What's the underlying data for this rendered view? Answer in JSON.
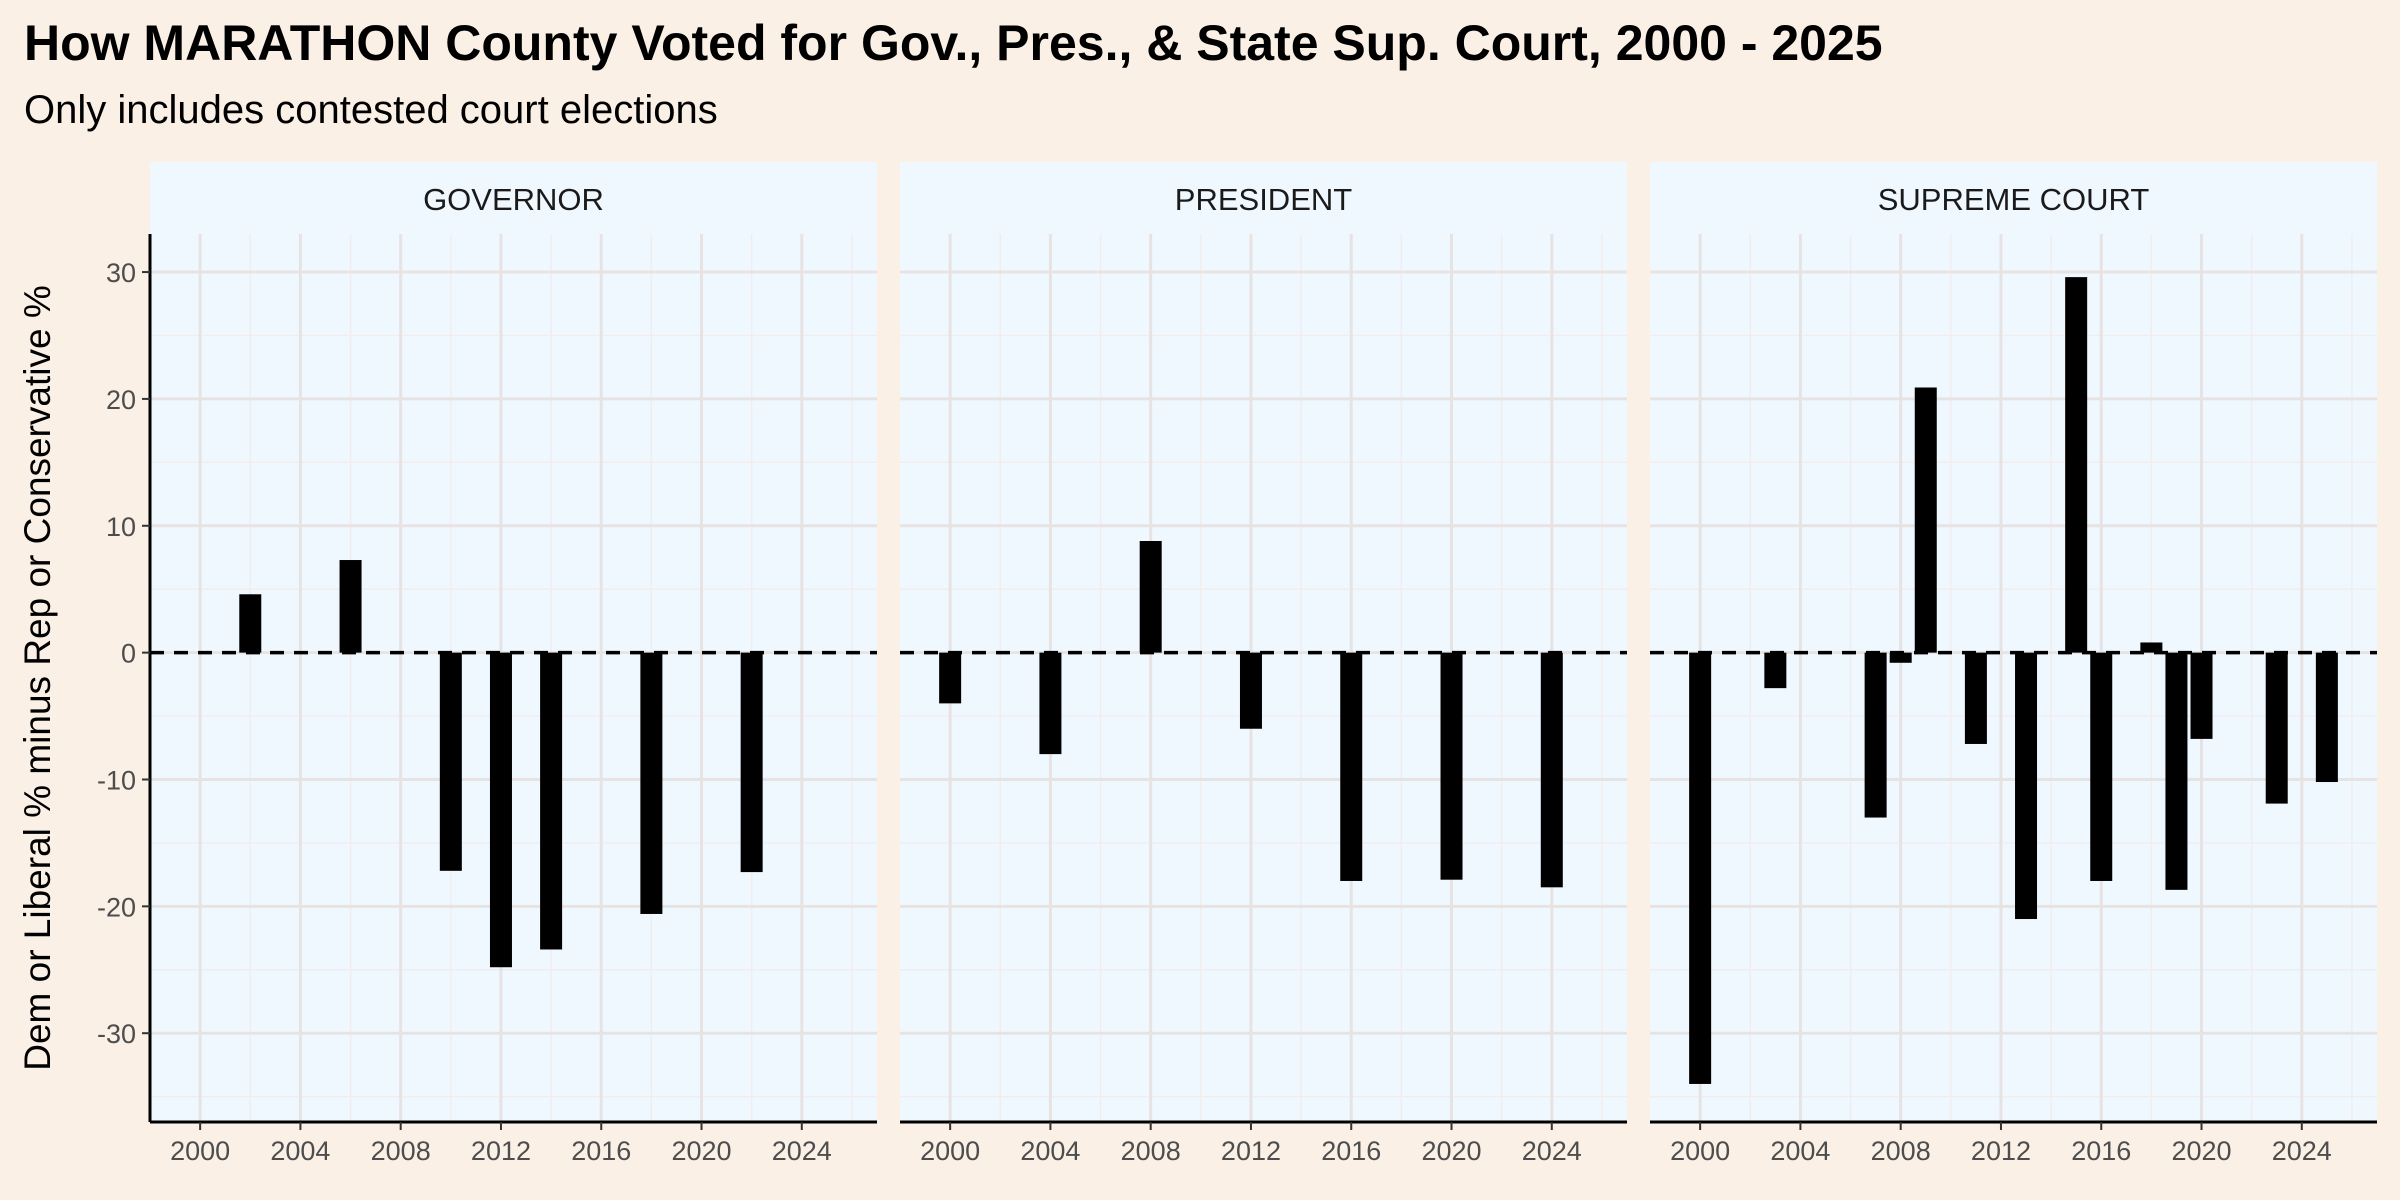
{
  "chart_data": {
    "type": "bar",
    "title": "How MARATHON County Voted for Gov., Pres., & State Sup. Court, 2000 - 2025",
    "subtitle": "Only includes contested court elections",
    "ylabel": "Dem or Liberal % minus Rep or Conservative %",
    "xlabel": "",
    "xlim": [
      1998,
      2027
    ],
    "ylim": [
      -37,
      33
    ],
    "x_ticks": [
      2000,
      2004,
      2008,
      2012,
      2016,
      2020,
      2024
    ],
    "y_ticks": [
      -30,
      -20,
      -10,
      0,
      10,
      20,
      30
    ],
    "reference_line": {
      "y": 0,
      "style": "dashed"
    },
    "grid": true,
    "bar_color": "#000000",
    "panel_background": "#f0f8ff",
    "page_background": "#faf0e6",
    "panels": [
      {
        "name": "GOVERNOR",
        "x": [
          2002,
          2006,
          2010,
          2012,
          2014,
          2018,
          2022
        ],
        "values": [
          4.6,
          7.3,
          -17.2,
          -24.8,
          -23.4,
          -20.6,
          -17.3
        ]
      },
      {
        "name": "PRESIDENT",
        "x": [
          2000,
          2004,
          2008,
          2012,
          2016,
          2020,
          2024
        ],
        "values": [
          -4.0,
          -8.0,
          8.8,
          -6.0,
          -18.0,
          -17.9,
          -18.5
        ]
      },
      {
        "name": "SUPREME COURT",
        "x": [
          2000,
          2003,
          2007,
          2008,
          2009,
          2011,
          2013,
          2015,
          2016,
          2018,
          2019,
          2020,
          2023,
          2025
        ],
        "values": [
          -34.0,
          -2.8,
          -13.0,
          -0.8,
          20.9,
          -7.2,
          -21.0,
          29.6,
          -18.0,
          0.8,
          -18.7,
          -6.8,
          -11.9,
          -10.2
        ]
      }
    ]
  }
}
